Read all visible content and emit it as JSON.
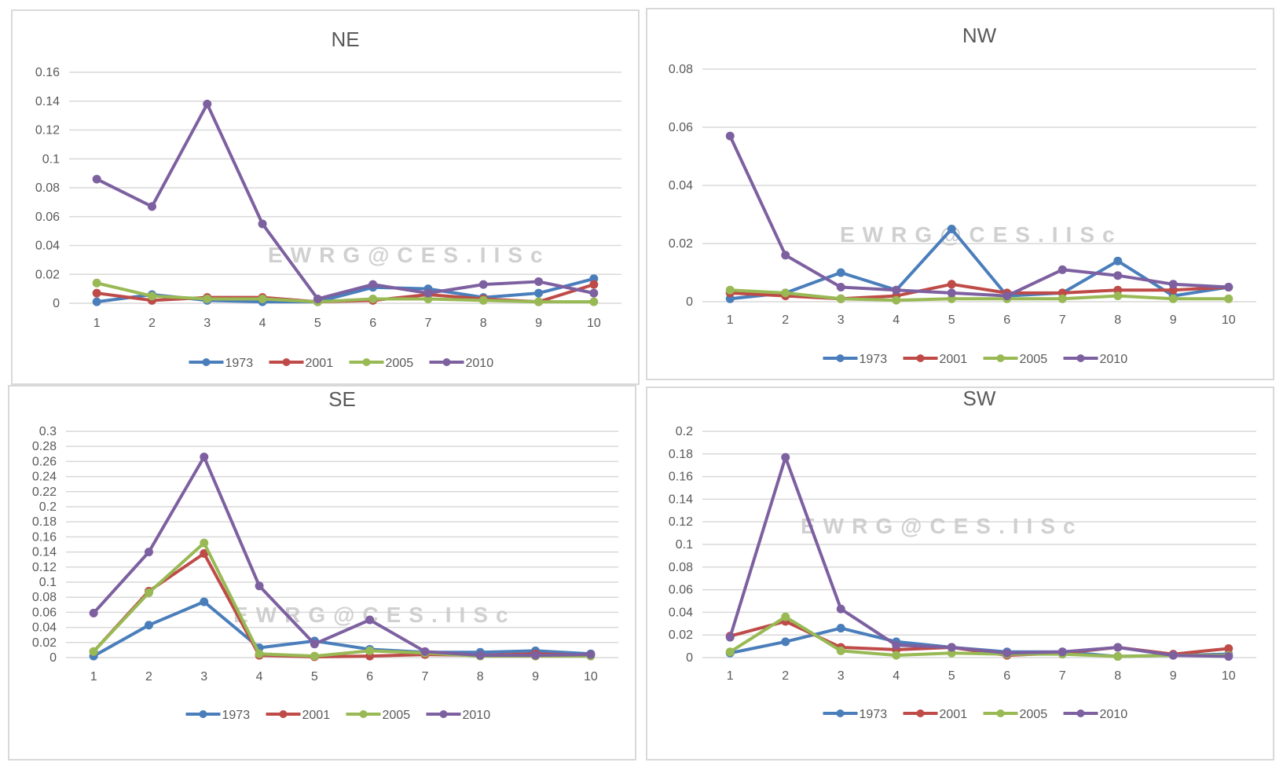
{
  "chart_data": [
    {
      "type": "line",
      "title": "NE",
      "xlabel": "",
      "ylabel": "",
      "categories": [
        "1",
        "2",
        "3",
        "4",
        "5",
        "6",
        "7",
        "8",
        "9",
        "10"
      ],
      "ylim": [
        0,
        0.16
      ],
      "yticks": [
        "0",
        "0.02",
        "0.04",
        "0.06",
        "0.08",
        "0.1",
        "0.12",
        "0.14",
        "0.16"
      ],
      "ytick_values": [
        0,
        0.02,
        0.04,
        0.06,
        0.08,
        0.1,
        0.12,
        0.14,
        0.16
      ],
      "grid": true,
      "legend": "bottom",
      "watermark": "EWRG@CES.IISc",
      "series": [
        {
          "name": "1973",
          "values": [
            0.001,
            0.006,
            0.002,
            0.001,
            0.001,
            0.011,
            0.01,
            0.004,
            0.007,
            0.017
          ]
        },
        {
          "name": "2001",
          "values": [
            0.007,
            0.002,
            0.004,
            0.004,
            0.001,
            0.002,
            0.006,
            0.003,
            0.001,
            0.013
          ]
        },
        {
          "name": "2005",
          "values": [
            0.014,
            0.005,
            0.003,
            0.003,
            0.001,
            0.003,
            0.003,
            0.002,
            0.001,
            0.001
          ]
        },
        {
          "name": "2010",
          "values": [
            0.086,
            0.067,
            0.138,
            0.055,
            0.003,
            0.013,
            0.007,
            0.013,
            0.015,
            0.007
          ]
        }
      ]
    },
    {
      "type": "line",
      "title": "NW",
      "xlabel": "",
      "ylabel": "",
      "categories": [
        "1",
        "2",
        "3",
        "4",
        "5",
        "6",
        "7",
        "8",
        "9",
        "10"
      ],
      "ylim": [
        0,
        0.08
      ],
      "yticks": [
        "0",
        "0.02",
        "0.04",
        "0.06",
        "0.08"
      ],
      "ytick_values": [
        0,
        0.02,
        0.04,
        0.06,
        0.08
      ],
      "grid": true,
      "legend": "bottom",
      "watermark": "EWRG@CES.IISc",
      "series": [
        {
          "name": "1973",
          "values": [
            0.001,
            0.003,
            0.01,
            0.004,
            0.025,
            0.002,
            0.003,
            0.014,
            0.002,
            0.005
          ]
        },
        {
          "name": "2001",
          "values": [
            0.003,
            0.002,
            0.001,
            0.002,
            0.006,
            0.003,
            0.003,
            0.004,
            0.004,
            0.005
          ]
        },
        {
          "name": "2005",
          "values": [
            0.004,
            0.003,
            0.001,
            0.0005,
            0.001,
            0.001,
            0.001,
            0.002,
            0.001,
            0.001
          ]
        },
        {
          "name": "2010",
          "values": [
            0.057,
            0.016,
            0.005,
            0.004,
            0.003,
            0.002,
            0.011,
            0.009,
            0.006,
            0.005
          ]
        }
      ]
    },
    {
      "type": "line",
      "title": "SE",
      "xlabel": "",
      "ylabel": "",
      "categories": [
        "1",
        "2",
        "3",
        "4",
        "5",
        "6",
        "7",
        "8",
        "9",
        "10"
      ],
      "ylim": [
        0,
        0.3
      ],
      "yticks": [
        "0",
        "0.02",
        "0.04",
        "0.06",
        "0.08",
        "0.1",
        "0.12",
        "0.14",
        "0.16",
        "0.18",
        "0.2",
        "0.22",
        "0.24",
        "0.26",
        "0.28",
        "0.3"
      ],
      "ytick_values": [
        0,
        0.02,
        0.04,
        0.06,
        0.08,
        0.1,
        0.12,
        0.14,
        0.16,
        0.18,
        0.2,
        0.22,
        0.24,
        0.26,
        0.28,
        0.3
      ],
      "grid": true,
      "legend": "bottom",
      "watermark": "EWRG@CES.IISc",
      "series": [
        {
          "name": "1973",
          "values": [
            0.002,
            0.043,
            0.074,
            0.013,
            0.022,
            0.011,
            0.007,
            0.007,
            0.009,
            0.005
          ]
        },
        {
          "name": "2001",
          "values": [
            0.008,
            0.088,
            0.138,
            0.003,
            0.001,
            0.002,
            0.004,
            0.003,
            0.005,
            0.003
          ]
        },
        {
          "name": "2005",
          "values": [
            0.008,
            0.086,
            0.152,
            0.005,
            0.002,
            0.009,
            0.006,
            0.002,
            0.002,
            0.002
          ]
        },
        {
          "name": "2010",
          "values": [
            0.059,
            0.14,
            0.266,
            0.095,
            0.018,
            0.05,
            0.008,
            0.003,
            0.003,
            0.004
          ]
        }
      ]
    },
    {
      "type": "line",
      "title": "SW",
      "xlabel": "",
      "ylabel": "",
      "categories": [
        "1",
        "2",
        "3",
        "4",
        "5",
        "6",
        "7",
        "8",
        "9",
        "10"
      ],
      "ylim": [
        0,
        0.2
      ],
      "yticks": [
        "0",
        "0.02",
        "0.04",
        "0.06",
        "0.08",
        "0.1",
        "0.12",
        "0.14",
        "0.16",
        "0.18",
        "0.2"
      ],
      "ytick_values": [
        0,
        0.02,
        0.04,
        0.06,
        0.08,
        0.1,
        0.12,
        0.14,
        0.16,
        0.18,
        0.2
      ],
      "grid": true,
      "legend": "bottom",
      "watermark": "EWRG@CES.IISc",
      "series": [
        {
          "name": "1973",
          "values": [
            0.004,
            0.014,
            0.026,
            0.014,
            0.009,
            0.005,
            0.005,
            0.001,
            0.002,
            0.003
          ]
        },
        {
          "name": "2001",
          "values": [
            0.019,
            0.032,
            0.009,
            0.007,
            0.009,
            0.002,
            0.004,
            0.009,
            0.003,
            0.008
          ]
        },
        {
          "name": "2005",
          "values": [
            0.005,
            0.036,
            0.006,
            0.002,
            0.004,
            0.003,
            0.003,
            0.001,
            0.002,
            0.002
          ]
        },
        {
          "name": "2010",
          "values": [
            0.018,
            0.177,
            0.043,
            0.011,
            0.009,
            0.004,
            0.005,
            0.009,
            0.002,
            0.001
          ]
        }
      ]
    }
  ],
  "series_colors": {
    "1973": "#4a7ebb",
    "2001": "#be4b48",
    "2005": "#98b954",
    "2010": "#7d60a0"
  }
}
